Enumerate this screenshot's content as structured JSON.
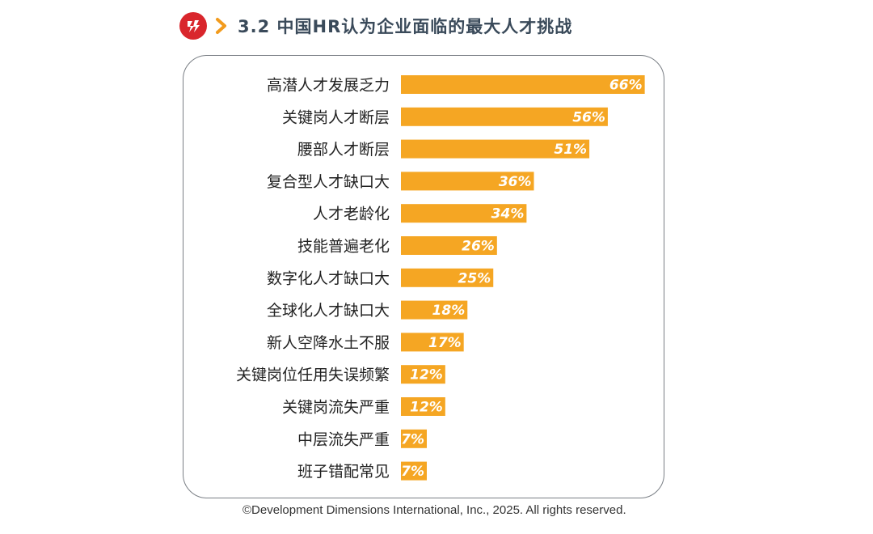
{
  "header": {
    "title": "3.2 中国HR认为企业面临的最大人才挑战",
    "logo_color": "#d9262c",
    "chevron_color": "#f29b1d"
  },
  "chart_data": {
    "type": "bar",
    "orientation": "horizontal",
    "categories": [
      "高潜人才发展乏力",
      "关键岗人才断层",
      "腰部人才断层",
      "复合型人才缺口大",
      "人才老龄化",
      "技能普遍老化",
      "数字化人才缺口大",
      "全球化人才缺口大",
      "新人空降水土不服",
      "关键岗位任用失误频繁",
      "关键岗流失严重",
      "中层流失严重",
      "班子错配常见"
    ],
    "values": [
      66,
      56,
      51,
      36,
      34,
      26,
      25,
      18,
      17,
      12,
      12,
      7,
      7
    ],
    "data_labels": [
      "66%",
      "56%",
      "51%",
      "36%",
      "34%",
      "26%",
      "25%",
      "18%",
      "17%",
      "12%",
      "12%",
      "7%",
      "7%"
    ],
    "bar_color": "#f5a623",
    "grid": false,
    "legend": "none"
  },
  "footer": {
    "copyright": "©Development Dimensions International, Inc., 2025. All rights reserved."
  }
}
